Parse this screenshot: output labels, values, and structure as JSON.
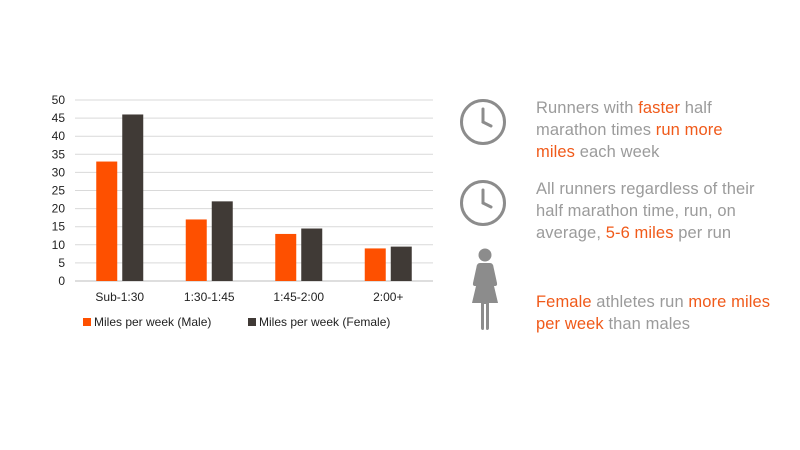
{
  "chart_data": {
    "type": "bar",
    "categories": [
      "Sub-1:30",
      "1:30-1:45",
      "1:45-2:00",
      "2:00+"
    ],
    "series": [
      {
        "name": "Miles per week (Male)",
        "color": "#fe5000",
        "values": [
          33,
          17,
          13,
          9
        ]
      },
      {
        "name": "Miles per week (Female)",
        "color": "#403a36",
        "values": [
          46,
          22,
          14.5,
          9.5
        ]
      }
    ],
    "ylim": [
      0,
      50
    ],
    "yticks": [
      "0",
      "5",
      "10",
      "15",
      "20",
      "25",
      "30",
      "35",
      "40",
      "45",
      "50"
    ],
    "grid": true,
    "legend_position": "bottom"
  },
  "facts": [
    {
      "icon": "clock-icon",
      "segments": [
        {
          "text": "Runners with ",
          "hl": false
        },
        {
          "text": "faster",
          "hl": true
        },
        {
          "text": " half marathon times ",
          "hl": false
        },
        {
          "text": "run more miles",
          "hl": true
        },
        {
          "text": " each week",
          "hl": false
        }
      ]
    },
    {
      "icon": "clock-icon",
      "segments": [
        {
          "text": "All runners regardless of their half marathon time, run, on average, ",
          "hl": false
        },
        {
          "text": "5-6 miles",
          "hl": true
        },
        {
          "text": " per run",
          "hl": false
        }
      ]
    },
    {
      "icon": "female-figure-icon",
      "segments": [
        {
          "text": "Female",
          "hl": true
        },
        {
          "text": " athletes run ",
          "hl": false
        },
        {
          "text": "more miles per week",
          "hl": true
        },
        {
          "text": " than males",
          "hl": false
        }
      ]
    }
  ],
  "colors": {
    "accent": "#f05a1a",
    "gray_text": "#9b9b9b",
    "icon_gray": "#8c8c8c"
  }
}
